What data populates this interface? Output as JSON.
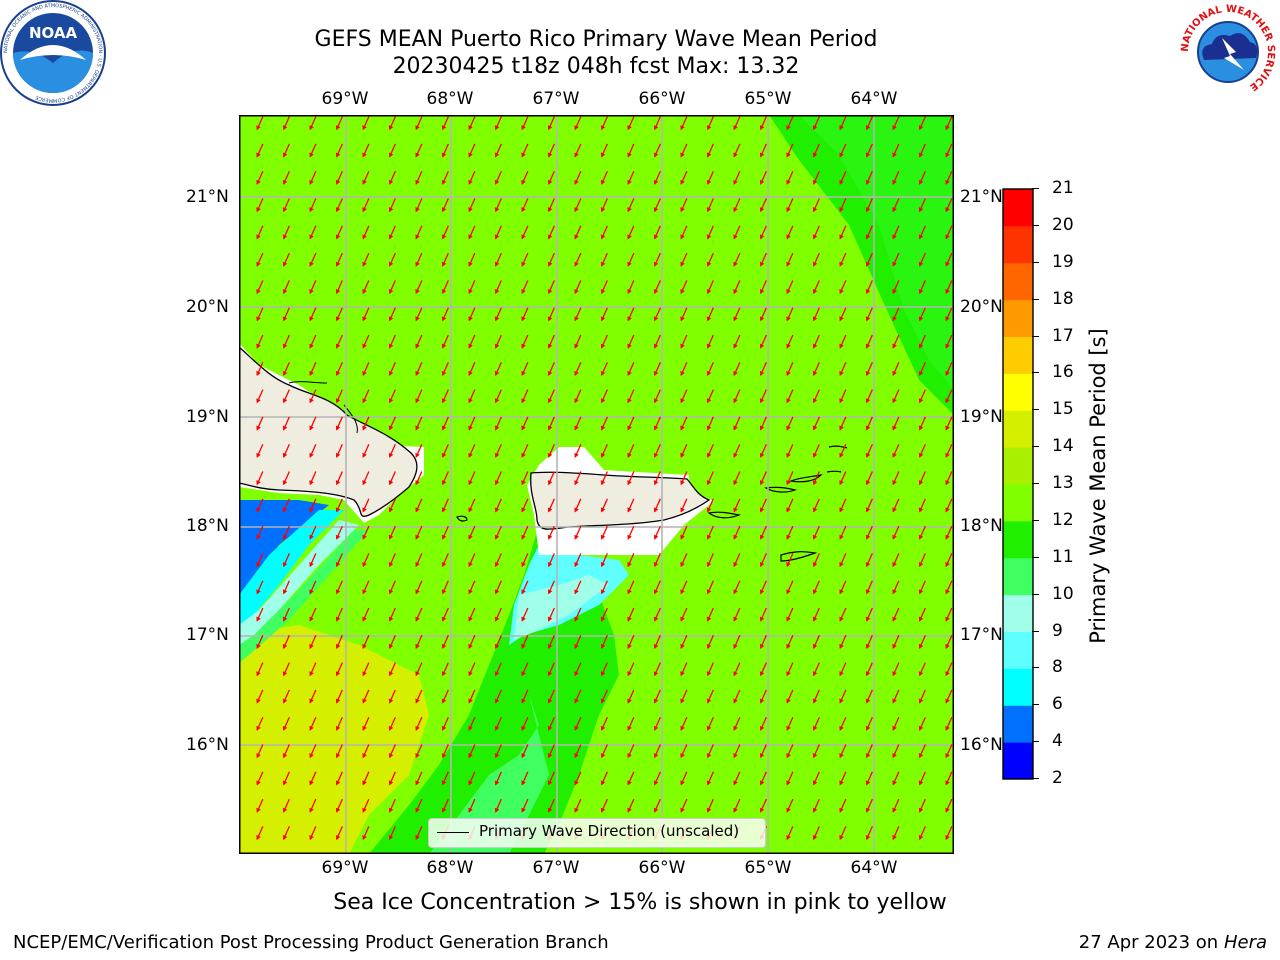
{
  "header": {
    "title_line1": "GEFS MEAN Puerto Rico Primary Wave Mean Period",
    "title_line2": "20230425 t18z 048h fcst   Max: 13.32"
  },
  "logos": {
    "left": "noaa-logo",
    "left_text": "NOAA",
    "left_ring_text": "NATIONAL OCEANIC AND ATMOSPHERIC ADMINISTRATION · U.S. DEPARTMENT OF COMMERCE",
    "right": "nws-logo",
    "right_ring_text": "NATIONAL WEATHER SERVICE"
  },
  "map": {
    "lon_labels": [
      "69°W",
      "68°W",
      "67°W",
      "66°W",
      "65°W",
      "64°W"
    ],
    "lat_labels": [
      "21°N",
      "20°N",
      "19°N",
      "18°N",
      "17°N",
      "16°N"
    ],
    "legend_label": "Primary Wave Direction (unscaled)",
    "arrow_color": "#ff0000",
    "land_color": "#efece0",
    "background_field_color": "#80ff00"
  },
  "colorbar": {
    "label": "Primary Wave Mean Period [s]",
    "ticks": [
      "2",
      "4",
      "6",
      "8",
      "9",
      "10",
      "11",
      "12",
      "13",
      "14",
      "15",
      "16",
      "17",
      "18",
      "19",
      "20",
      "21"
    ],
    "colors": [
      "#0000ff",
      "#0070ff",
      "#00ffff",
      "#60ffff",
      "#a0ffe8",
      "#40ff60",
      "#20f000",
      "#80ff00",
      "#a8f000",
      "#d4f000",
      "#ffff00",
      "#ffcc00",
      "#ff9900",
      "#ff6600",
      "#ff3300",
      "#ff0000"
    ]
  },
  "footer": {
    "note": "Sea Ice Concentration > 15% is shown in pink to yellow",
    "credit": "NCEP/EMC/Verification Post Processing Product Generation Branch",
    "date": "27 Apr 2023 on",
    "machine": "Hera"
  }
}
